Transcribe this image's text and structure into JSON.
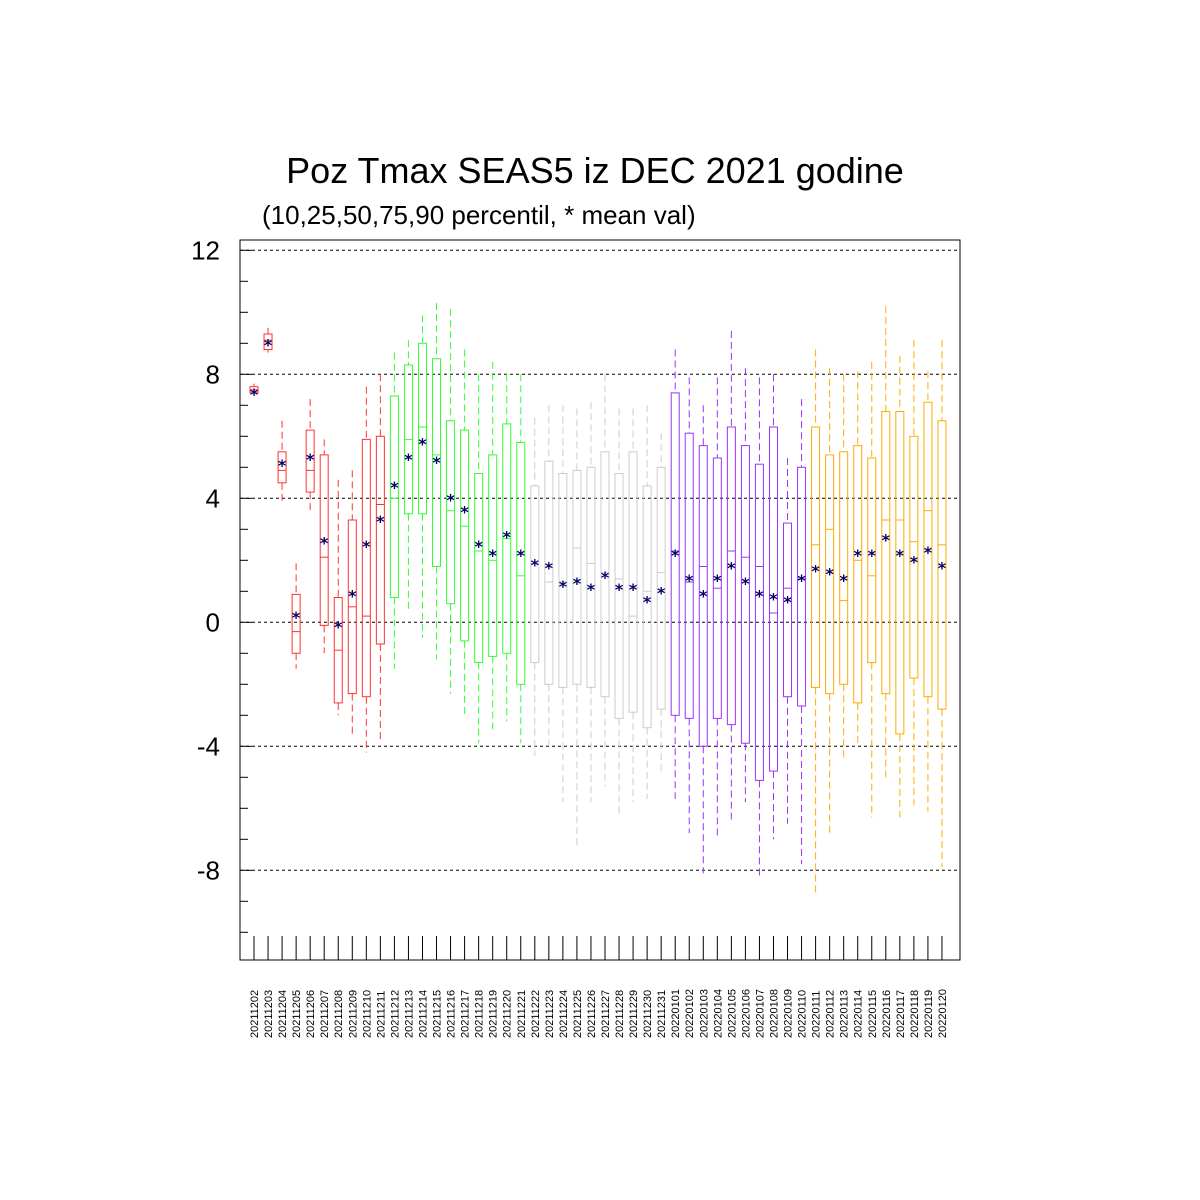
{
  "chart_data": {
    "type": "box",
    "title": "Poz Tmax SEAS5 iz DEC 2021 godine",
    "subtitle": "(10,25,50,75,90 percentil, * mean val)",
    "ylim": [
      -10.5,
      12.3
    ],
    "yticks": [
      -8,
      -4,
      0,
      4,
      8,
      12
    ],
    "grid": "dashed horizontal",
    "group_colors": [
      "#ff3333",
      "#33ff33",
      "#cccccc",
      "#9933ff",
      "#ffaa00"
    ],
    "categories": [
      "20211202",
      "20211203",
      "20211204",
      "20211205",
      "20211206",
      "20211207",
      "20211208",
      "20211209",
      "20211210",
      "20211211",
      "20211212",
      "20211213",
      "20211214",
      "20211215",
      "20211216",
      "20211217",
      "20211218",
      "20211219",
      "20211220",
      "20211221",
      "20211222",
      "20211223",
      "20211224",
      "20211225",
      "20211226",
      "20211227",
      "20211228",
      "20211229",
      "20211230",
      "20211231",
      "20220101",
      "20220102",
      "20220103",
      "20220104",
      "20220105",
      "20220106",
      "20220107",
      "20220108",
      "20220109",
      "20220110",
      "20220111",
      "20220112",
      "20220113",
      "20220114",
      "20220115",
      "20220116",
      "20220117",
      "20220118",
      "20220119",
      "20220120"
    ],
    "group": [
      0,
      0,
      0,
      0,
      0,
      0,
      0,
      0,
      0,
      0,
      1,
      1,
      1,
      1,
      1,
      1,
      1,
      1,
      1,
      1,
      2,
      2,
      2,
      2,
      2,
      2,
      2,
      2,
      2,
      2,
      3,
      3,
      3,
      3,
      3,
      3,
      3,
      3,
      3,
      3,
      4,
      4,
      4,
      4,
      4,
      4,
      4,
      4,
      4,
      4
    ],
    "p10": [
      7.3,
      8.7,
      3.8,
      -1.5,
      3.6,
      -1.0,
      -3.0,
      -3.6,
      -4.2,
      -3.8,
      -1.5,
      0.3,
      -0.5,
      -1.2,
      -2.3,
      -3.0,
      -3.9,
      -3.5,
      -3.2,
      -3.9,
      -4.3,
      -4.0,
      -5.8,
      -7.2,
      -5.8,
      -5.3,
      -6.3,
      -5.8,
      -5.7,
      -4.9,
      -5.7,
      -6.8,
      -8.1,
      -6.9,
      -6.5,
      -5.8,
      -8.2,
      -7.0,
      -6.5,
      -7.8,
      -8.8,
      -6.8,
      -4.4,
      -3.9,
      -6.3,
      -5.0,
      -6.3,
      -5.9,
      -6.1,
      -7.9
    ],
    "p25": [
      7.4,
      8.8,
      4.5,
      -1.0,
      4.2,
      -0.1,
      -2.6,
      -2.3,
      -2.4,
      -0.7,
      0.8,
      3.5,
      3.5,
      1.8,
      0.6,
      -0.6,
      -1.3,
      -1.1,
      -1.0,
      -2.0,
      -1.3,
      -2.0,
      -2.1,
      -2.0,
      -2.1,
      -2.4,
      -3.1,
      -2.9,
      -3.4,
      -2.8,
      -3.0,
      -3.1,
      -4.0,
      -3.1,
      -3.3,
      -3.9,
      -5.1,
      -4.8,
      -2.4,
      -2.7,
      -2.1,
      -2.3,
      -2.0,
      -2.6,
      -1.3,
      -2.3,
      -3.6,
      -1.8,
      -2.4,
      -2.8
    ],
    "p50": [
      7.5,
      9.1,
      4.9,
      -0.3,
      4.9,
      2.1,
      -0.9,
      0.5,
      0.2,
      3.8,
      4.0,
      5.9,
      6.3,
      5.4,
      3.6,
      3.1,
      2.3,
      2.0,
      2.7,
      1.5,
      1.9,
      1.3,
      1.3,
      2.4,
      1.9,
      1.6,
      1.4,
      0.2,
      1.0,
      1.6,
      2.3,
      1.3,
      1.8,
      1.1,
      2.3,
      2.1,
      1.8,
      0.3,
      1.1,
      1.4,
      2.5,
      3.0,
      0.7,
      2.0,
      1.5,
      3.3,
      3.3,
      2.6,
      3.6,
      2.5
    ],
    "p75": [
      7.6,
      9.3,
      5.5,
      0.9,
      6.2,
      5.4,
      0.8,
      3.3,
      5.9,
      6.0,
      7.3,
      8.3,
      9.0,
      8.5,
      6.5,
      6.2,
      4.8,
      5.4,
      6.4,
      5.8,
      4.4,
      5.2,
      4.8,
      4.9,
      5.0,
      5.5,
      4.8,
      5.5,
      4.4,
      5.0,
      7.4,
      6.1,
      5.7,
      5.3,
      6.3,
      5.7,
      5.1,
      6.3,
      3.2,
      5.0,
      6.3,
      5.4,
      5.5,
      5.7,
      5.3,
      6.8,
      6.8,
      6.0,
      7.1,
      6.5
    ],
    "p90": [
      7.7,
      9.5,
      6.5,
      1.9,
      7.2,
      5.9,
      4.6,
      4.9,
      7.6,
      8.0,
      8.7,
      9.1,
      9.9,
      10.3,
      10.1,
      8.8,
      8.0,
      8.4,
      8.0,
      8.0,
      6.6,
      7.0,
      7.0,
      6.9,
      7.1,
      8.0,
      6.9,
      6.9,
      7.0,
      6.1,
      8.8,
      7.9,
      7.0,
      7.9,
      9.4,
      8.2,
      7.9,
      8.0,
      5.3,
      7.2,
      8.8,
      8.2,
      8.0,
      8.1,
      8.4,
      10.2,
      8.6,
      9.1,
      8.1,
      9.1
    ],
    "mean": [
      7.4,
      9.0,
      5.1,
      0.2,
      5.3,
      2.6,
      -0.1,
      0.9,
      2.5,
      3.3,
      4.4,
      5.3,
      5.8,
      5.2,
      4.0,
      3.6,
      2.5,
      2.2,
      2.8,
      2.2,
      1.9,
      1.8,
      1.2,
      1.3,
      1.1,
      1.5,
      1.1,
      1.1,
      0.7,
      1.0,
      2.2,
      1.4,
      0.9,
      1.4,
      1.8,
      1.3,
      0.9,
      0.8,
      0.7,
      1.4,
      1.7,
      1.6,
      1.4,
      2.2,
      2.2,
      2.7,
      2.2,
      2.0,
      2.3,
      1.8
    ]
  }
}
